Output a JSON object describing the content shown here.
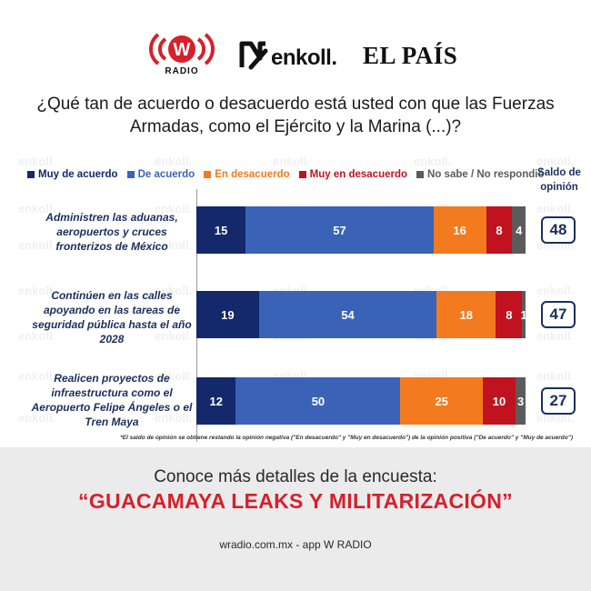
{
  "logos": {
    "wradio_letter": "W",
    "wradio_label": "RADIO",
    "enkoll_label": "enkoll.",
    "elpais_label": "EL PAÍS"
  },
  "question": "¿Qué tan de acuerdo o desacuerdo está usted con que las Fuerzas Armadas, como el Ejército y la Marina (...)?",
  "saldo_header": [
    "Saldo de",
    "opinión"
  ],
  "watermark_text": "enkoll.",
  "colors": {
    "muy_de_acuerdo": "#13296b",
    "de_acuerdo": "#3a63b8",
    "en_desacuerdo": "#f47a20",
    "muy_en_desacuerdo": "#c1121f",
    "no_sabe": "#5b5b5b",
    "saldo_border": "#1b2f5e",
    "promo_red": "#d6202c"
  },
  "chart_data": {
    "type": "bar",
    "orientation": "horizontal",
    "stacked": true,
    "legend_position": "top",
    "xlim": [
      0,
      100
    ],
    "series": [
      {
        "name": "Muy de acuerdo",
        "color": "#13296b",
        "text_color": "#ffffff",
        "values": [
          15,
          19,
          12
        ]
      },
      {
        "name": "De acuerdo",
        "color": "#3a63b8",
        "text_color": "#ffffff",
        "values": [
          57,
          54,
          50
        ]
      },
      {
        "name": "En desacuerdo",
        "color": "#f47a20",
        "text_color": "#ffffff",
        "values": [
          16,
          18,
          25
        ]
      },
      {
        "name": "Muy en desacuerdo",
        "color": "#c1121f",
        "text_color": "#ffffff",
        "values": [
          8,
          8,
          10
        ]
      },
      {
        "name": "No sabe / No respondió",
        "color": "#5b5b5b",
        "text_color": "#ffffff",
        "values": [
          4,
          1,
          3
        ]
      }
    ],
    "categories": [
      "Administren las aduanas, aeropuertos y cruces fronterizos de México",
      "Continúen en las calles apoyando en las tareas de seguridad pública hasta el año 2028",
      "Realicen proyectos de infraestructura como el Aeropuerto Felipe Ángeles o el Tren Maya"
    ],
    "saldo_de_opinion": [
      48,
      47,
      27
    ]
  },
  "footnote": "*El saldo de opinión se obtiene restando la opinión negativa (\"En desacuerdo\" y \"Muy en desacuerdo\") de la opinión positiva (\"De acuerdo\" y \"Muy de acuerdo\")",
  "promo": {
    "line1": "Conoce más detalles de la encuesta:",
    "line2": "“GUACAMAYA LEAKS Y MILITARIZACIÓN”"
  },
  "source": "wradio.com.mx - app W RADIO"
}
